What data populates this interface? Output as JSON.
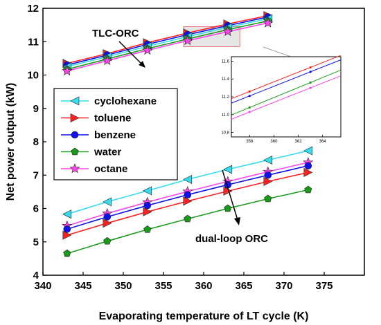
{
  "chart_data": {
    "type": "line",
    "title": "",
    "xlabel": "Evaporating temperature of LT cycle (K)",
    "ylabel": "Net power output (kW)",
    "xlim": [
      340,
      380
    ],
    "ylim": [
      4,
      12
    ],
    "xticks": [
      340,
      345,
      350,
      355,
      360,
      365,
      370,
      375
    ],
    "yticks": [
      4,
      5,
      6,
      7,
      8,
      9,
      10,
      11,
      12
    ],
    "grid": false,
    "legend_position": "left",
    "legend": [
      {
        "name": "cyclohexane",
        "color": "#33ddee",
        "marker": "triangle-left"
      },
      {
        "name": "toluene",
        "color": "#ff2020",
        "marker": "triangle-right"
      },
      {
        "name": "benzene",
        "color": "#1010ee",
        "marker": "circle"
      },
      {
        "name": "water",
        "color": "#1a9a1a",
        "marker": "pentagon"
      },
      {
        "name": "octane",
        "color": "#ff44ee",
        "marker": "star"
      }
    ],
    "groups": [
      {
        "label": "TLC-ORC",
        "x": [
          343,
          348,
          353,
          358,
          363,
          368
        ],
        "series": [
          {
            "name": "toluene",
            "values": [
              10.35,
              10.64,
              10.97,
              11.26,
              11.53,
              11.78
            ]
          },
          {
            "name": "benzene",
            "values": [
              10.3,
              10.6,
              10.92,
              11.21,
              11.48,
              11.74
            ]
          },
          {
            "name": "cyclohexane",
            "values": [
              10.25,
              10.55,
              10.86,
              11.15,
              11.43,
              11.69
            ]
          },
          {
            "name": "water",
            "values": [
              10.17,
              10.48,
              10.79,
              11.08,
              11.36,
              11.62
            ]
          },
          {
            "name": "octane",
            "values": [
              10.12,
              10.43,
              10.74,
              11.03,
              11.3,
              11.56
            ]
          }
        ]
      },
      {
        "label": "dual-loop ORC",
        "x": [
          343,
          348,
          353,
          358,
          363,
          368,
          373
        ],
        "series": [
          {
            "name": "cyclohexane",
            "values": [
              5.83,
              6.2,
              6.53,
              6.87,
              7.17,
              7.45,
              7.73
            ]
          },
          {
            "name": "octane",
            "values": [
              5.48,
              5.85,
              6.19,
              6.51,
              6.81,
              7.1,
              7.38
            ]
          },
          {
            "name": "benzene",
            "values": [
              5.38,
              5.75,
              6.09,
              6.41,
              6.71,
              7.0,
              7.28
            ]
          },
          {
            "name": "toluene",
            "values": [
              5.2,
              5.56,
              5.9,
              6.22,
              6.52,
              6.81,
              7.08
            ]
          },
          {
            "name": "water",
            "values": [
              4.65,
              5.02,
              5.37,
              5.69,
              6.0,
              6.29,
              6.56
            ]
          }
        ]
      }
    ],
    "inset": {
      "xlim": [
        356.5,
        365.5
      ],
      "ylim": [
        10.75,
        11.65
      ],
      "xticks": [
        358,
        360,
        362,
        364
      ],
      "yticks": [
        10.8,
        11.0,
        11.2,
        11.4,
        11.6
      ],
      "xticklabels": [
        "358",
        "360",
        "362",
        "364"
      ],
      "yticklabels": [
        "10.8",
        "11.0",
        "11.2",
        "11.4",
        "11.6"
      ],
      "x": [
        358,
        363
      ],
      "series": [
        {
          "name": "toluene",
          "values": [
            11.26,
            11.53
          ]
        },
        {
          "name": "benzene",
          "values": [
            11.21,
            11.48
          ]
        },
        {
          "name": "water",
          "values": [
            11.08,
            11.36
          ]
        },
        {
          "name": "octane",
          "values": [
            11.03,
            11.3
          ]
        }
      ]
    },
    "zoom_box": {
      "x": [
        357.5,
        364.5
      ],
      "y": [
        10.85,
        11.45
      ]
    }
  }
}
